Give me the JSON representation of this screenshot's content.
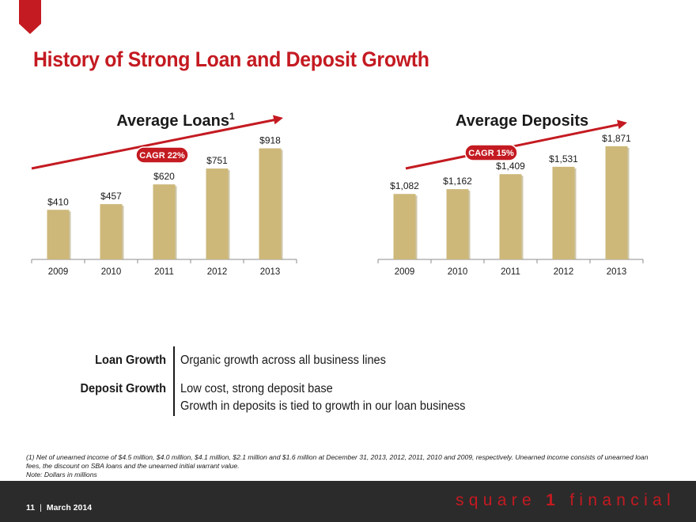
{
  "title": "History of Strong Loan and Deposit Growth",
  "colors": {
    "accent": "#c41a21",
    "bar": "#cdb87a",
    "bar_shadow": "#a89a6a",
    "axis": "#8c8c8c",
    "footer": "#2b2b2b"
  },
  "chart_data": [
    {
      "type": "bar",
      "title": "Average Loans",
      "title_superscript": "1",
      "categories": [
        "2009",
        "2010",
        "2011",
        "2012",
        "2013"
      ],
      "values": [
        410,
        457,
        620,
        751,
        918
      ],
      "value_labels": [
        "$410",
        "$457",
        "$620",
        "$751",
        "$918"
      ],
      "ylim": [
        0,
        1000
      ],
      "xlabel": "",
      "ylabel": "",
      "annotation": "CAGR 22%",
      "trend_arrow": true,
      "grid": false
    },
    {
      "type": "bar",
      "title": "Average Deposits",
      "categories": [
        "2009",
        "2010",
        "2011",
        "2012",
        "2013"
      ],
      "values": [
        1082,
        1162,
        1409,
        1531,
        1871
      ],
      "value_labels": [
        "$1,082",
        "$1,162",
        "$1,409",
        "$1,531",
        "$1,871"
      ],
      "ylim": [
        0,
        2000
      ],
      "xlabel": "",
      "ylabel": "",
      "annotation": "CAGR 15%",
      "trend_arrow": true,
      "grid": false
    }
  ],
  "summary": {
    "loan_label": "Loan Growth",
    "loan_text": "Organic growth across all business lines",
    "deposit_label": "Deposit Growth",
    "deposit_text_1": "Low cost, strong deposit base",
    "deposit_text_2": "Growth in deposits is tied to growth in our loan business"
  },
  "footnote": {
    "line1": "(1) Net of unearned income of $4.5 million, $4.0 million, $4.1 million, $2.1 million and $1.6 million at December 31, 2013, 2012, 2011, 2010 and 2009, respectively. Unearned income consists of unearned loan fees, the discount on SBA loans and the unearned initial warrant value.",
    "line2": "Note: Dollars in millions"
  },
  "footer": {
    "page_number": "11",
    "separator": "|",
    "date": "March 2014",
    "logo_word1": "square",
    "logo_num": "1",
    "logo_word2": "financial"
  }
}
